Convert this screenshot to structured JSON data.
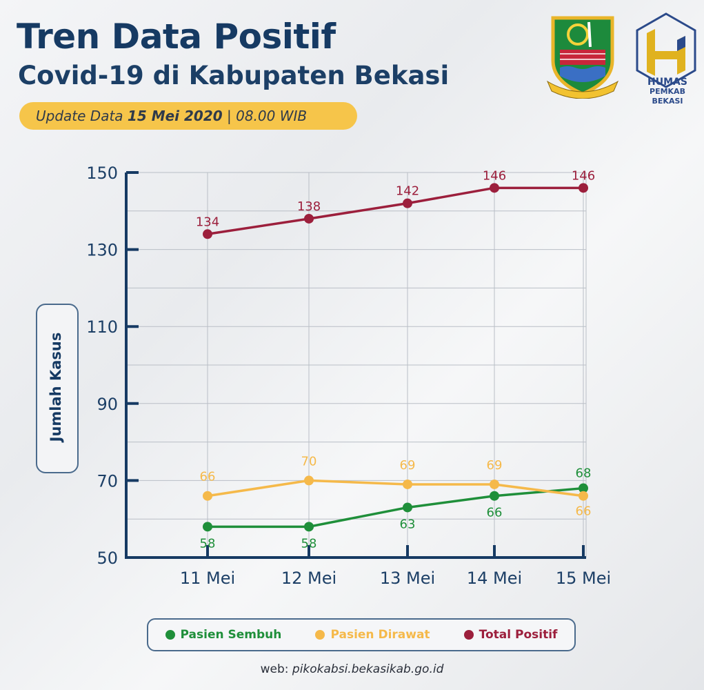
{
  "header": {
    "title": "Tren Data Positif",
    "subtitle": "Covid-19 di Kabupaten Bekasi",
    "update_prefix": "Update Data ",
    "update_date": "15 Mei 2020",
    "update_suffix": " | 08.00 WIB"
  },
  "logos": {
    "humas_line1": "HUMAS",
    "humas_line2": "PEMKAB BEKASI"
  },
  "footer": {
    "web_label": "web: ",
    "web_url": "pikokabsi.bekasikab.go.id"
  },
  "colors": {
    "sembuh": "#1f8f3a",
    "dirawat": "#f5b94a",
    "total": "#9c1f3c",
    "axis": "#163a63"
  },
  "chart_data": {
    "type": "line",
    "title": "Tren Data Positif",
    "ylabel": "Jumlah Kasus",
    "xlabel": "",
    "categories": [
      "11 Mei",
      "12 Mei",
      "13 Mei",
      "14  Mei",
      "15 Mei"
    ],
    "ylim": [
      50,
      150
    ],
    "yticks": [
      50,
      70,
      90,
      110,
      130,
      150
    ],
    "grid": true,
    "legend": "bottom",
    "series": [
      {
        "name": "Pasien Sembuh",
        "color": "#1f8f3a",
        "values": [
          58,
          58,
          63,
          66,
          68
        ]
      },
      {
        "name": "Pasien Dirawat",
        "color": "#f5b94a",
        "values": [
          66,
          70,
          69,
          69,
          66
        ]
      },
      {
        "name": "Total Positif",
        "color": "#9c1f3c",
        "values": [
          134,
          138,
          142,
          146,
          146
        ]
      }
    ]
  }
}
